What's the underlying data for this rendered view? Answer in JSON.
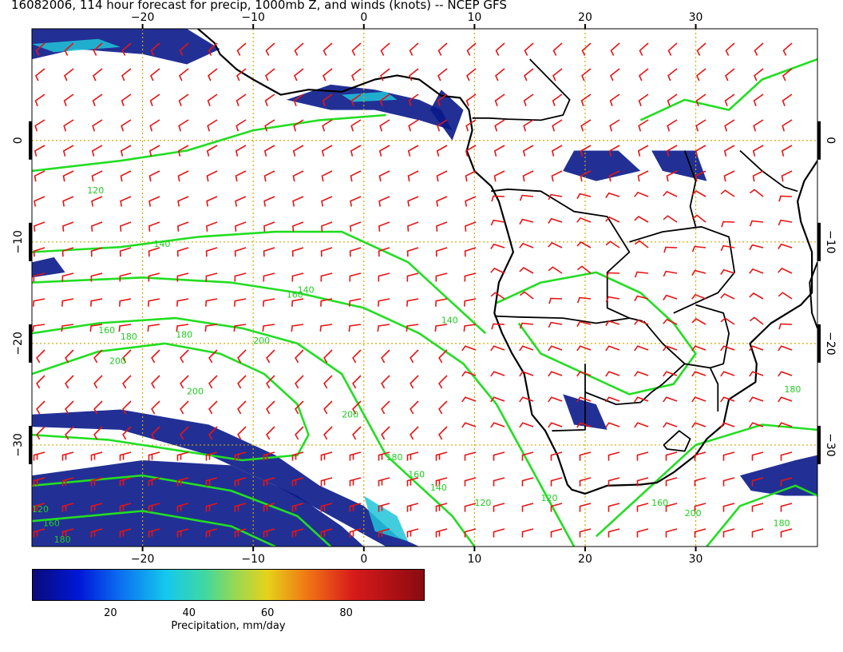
{
  "title": "16082006, 114 hour forecast for precip, 1000mb Z, and winds (knots) -- NCEP GFS",
  "map": {
    "lon_range": [
      -30,
      41
    ],
    "lat_range": [
      -40,
      11
    ],
    "lon_ticks": [
      -20,
      -10,
      0,
      10,
      20,
      30
    ],
    "lat_ticks": [
      0,
      -10,
      -20,
      -30
    ],
    "lon_tick_labels": [
      "−20",
      "−10",
      "0",
      "10",
      "20",
      "30"
    ],
    "lat_tick_labels": [
      "0",
      "−10",
      "−20",
      "−30"
    ],
    "contour_labels": [
      "120",
      "140",
      "140",
      "140",
      "160",
      "160",
      "180",
      "180",
      "200",
      "200",
      "200",
      "200",
      "180",
      "160",
      "140",
      "120",
      "120",
      "160",
      "180",
      "180",
      "200",
      "120",
      "160",
      "180"
    ],
    "colors": {
      "precip_dark": "#0a1a8a",
      "contour": "#22dd22",
      "wind_barb": "#e61414",
      "grid": "#d4a800",
      "coastline": "#000000"
    }
  },
  "colorbar": {
    "min": 0,
    "max": 100,
    "ticks": [
      20,
      40,
      60,
      80
    ],
    "tick_labels": [
      "20",
      "40",
      "60",
      "80"
    ],
    "label": "Precipitation, mm/day"
  }
}
